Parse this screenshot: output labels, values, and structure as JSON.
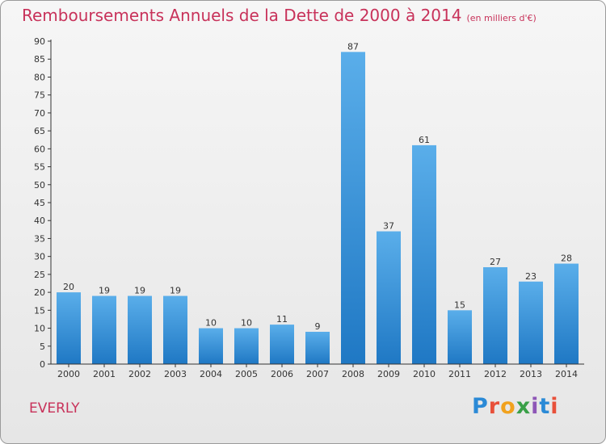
{
  "title": "Remboursements Annuels de la Dette de 2000 à 2014",
  "unit_note": "(en milliers d'€)",
  "commune": "EVERLY",
  "logo": {
    "letters": [
      "P",
      "r",
      "o",
      "x",
      "i",
      "t",
      "i"
    ],
    "colors": [
      "#2b8ad6",
      "#e8503a",
      "#f1a21e",
      "#3aa048",
      "#8e56b7",
      "#2b8ad6",
      "#e8503a"
    ]
  },
  "colors": {
    "title": "#c8325a",
    "bar_top": "#5aaeea",
    "bar_bottom": "#1f78c4",
    "axis": "#333333"
  },
  "chart_data": {
    "type": "bar",
    "categories": [
      "2000",
      "2001",
      "2002",
      "2003",
      "2004",
      "2005",
      "2006",
      "2007",
      "2008",
      "2009",
      "2010",
      "2011",
      "2012",
      "2013",
      "2014"
    ],
    "values": [
      20,
      19,
      19,
      19,
      10,
      10,
      11,
      9,
      87,
      37,
      61,
      15,
      27,
      23,
      28
    ],
    "ylim": [
      0,
      90
    ],
    "yticks": [
      0,
      5,
      10,
      15,
      20,
      25,
      30,
      35,
      40,
      45,
      50,
      55,
      60,
      65,
      70,
      75,
      80,
      85,
      90
    ],
    "grid": false,
    "legend": "none"
  }
}
